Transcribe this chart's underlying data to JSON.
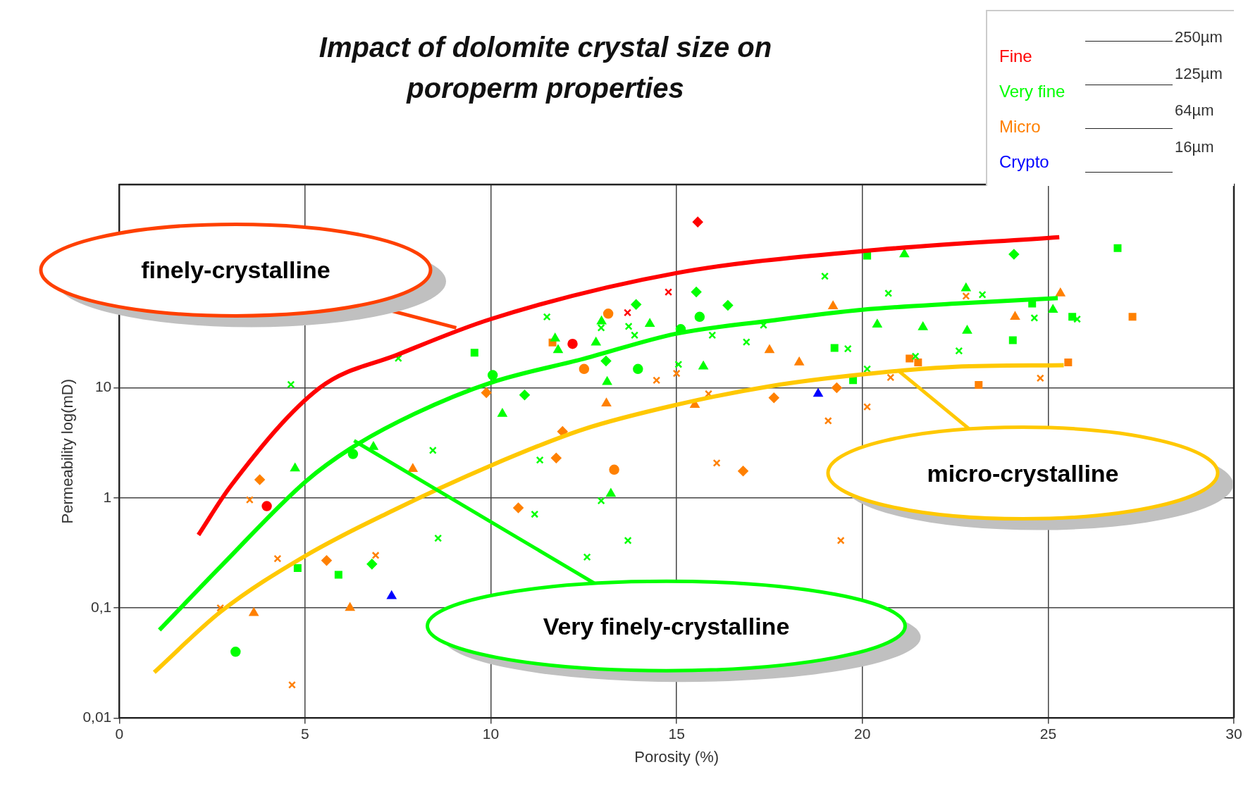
{
  "chart_data": {
    "type": "scatter",
    "title": "Impact of dolomite crystal size on poroperm properties",
    "xlabel": "Porosity (%)",
    "ylabel": "Permeability log(mD)",
    "xlim": [
      0,
      30
    ],
    "xticks": [
      0,
      5,
      10,
      15,
      20,
      25,
      30
    ],
    "ylim": [
      0.01,
      700
    ],
    "yticks": [
      {
        "value": 0.01,
        "label": "0,01"
      },
      {
        "value": 0.1,
        "label": "0,1"
      },
      {
        "value": 1,
        "label": "1"
      },
      {
        "value": 10,
        "label": "10"
      }
    ],
    "log": "y",
    "grid": true,
    "legend": "top right",
    "series": [
      {
        "name": "Fine",
        "color": "#ff0000",
        "marker": "circle",
        "x": [
          3.97,
          12.2
        ],
        "values": [
          0.84,
          25
        ]
      },
      {
        "color": "#ff0000",
        "marker": "cross",
        "x": [
          14.78,
          13.68
        ],
        "values": [
          74,
          48
        ]
      },
      {
        "color": "#ff0000",
        "marker": "diamond",
        "x": [
          15.57
        ],
        "values": [
          320
        ]
      },
      {
        "name": "Very fine",
        "color": "#00ff00",
        "marker": "circle",
        "x": [
          6.29,
          10.05,
          3.13,
          15.62,
          15.11,
          13.96
        ],
        "values": [
          2.5,
          13,
          0.04,
          44,
          34,
          14.8
        ]
      },
      {
        "color": "#00ff00",
        "marker": "cross",
        "x": [
          4.62,
          11.51,
          13.71,
          18.99,
          17.34,
          16.88,
          19.61,
          15.05,
          11.32,
          11.18,
          23.23
        ],
        "values": [
          10.7,
          44,
          36,
          103,
          37,
          26,
          22.6,
          16.3,
          2.2,
          0.71,
          70
        ]
      },
      {
        "color": "#00ff00",
        "marker": "square",
        "x": [
          9.56,
          4.8,
          5.9,
          20.13,
          19.25,
          19.75,
          26.87,
          24.57,
          25.65,
          24.05
        ],
        "values": [
          20.8,
          0.23,
          0.2,
          158,
          23,
          11.7,
          185,
          58,
          44,
          27
        ]
      },
      {
        "color": "#00ff00",
        "marker": "triangle",
        "x": [
          10.31,
          6.84,
          4.73,
          12.83,
          15.72,
          13.13,
          20.4,
          13.23,
          25.13,
          21.63,
          12.98,
          11.73,
          11.81,
          14.28,
          21.13,
          22.79,
          22.82
        ],
        "values": [
          5.8,
          2.9,
          1.85,
          25.7,
          15.6,
          11.3,
          37.5,
          1.09,
          51,
          35.5,
          40,
          28,
          22,
          38,
          163,
          80,
          33
        ]
      },
      {
        "color": "#00ff00",
        "marker": "diamond",
        "x": [
          6.8,
          15.53,
          13.91,
          16.38,
          13.1,
          10.91,
          24.08
        ],
        "values": [
          0.25,
          74,
          57,
          56,
          17.5,
          8.6,
          163
        ]
      },
      {
        "color": "#00ff00",
        "marker": "cross",
        "x": [
          7.51,
          8.44,
          8.58,
          12.97,
          13.87,
          15.96,
          20.7,
          20.13,
          12.97,
          13.69,
          12.59,
          24.63,
          25.78,
          22.6,
          21.43
        ],
        "values": [
          18.5,
          2.7,
          0.43,
          35,
          30,
          30,
          72,
          14.8,
          0.94,
          0.41,
          0.29,
          43,
          42,
          21.6,
          19.3
        ]
      },
      {
        "name": "Micro",
        "color": "#ff8000",
        "marker": "circle",
        "x": [
          13.16,
          12.51,
          13.32
        ],
        "values": [
          47,
          14.8,
          1.8
        ]
      },
      {
        "color": "#ff8000",
        "marker": "cross",
        "x": [
          16.08,
          22.79
        ],
        "values": [
          2.07,
          68
        ]
      },
      {
        "color": "#ff8000",
        "marker": "square",
        "x": [
          11.66,
          21.27,
          21.5,
          25.54,
          23.13,
          27.27
        ],
        "values": [
          25.7,
          18.4,
          17,
          17,
          10.6,
          44
        ]
      },
      {
        "color": "#ff8000",
        "marker": "triangle",
        "x": [
          7.9,
          6.21,
          3.62,
          17.5,
          18.3,
          19.21,
          13.11,
          15.49,
          25.33,
          24.11
        ],
        "values": [
          1.83,
          0.1,
          0.09,
          22,
          17,
          55,
          7.2,
          7.0,
          72,
          44
        ]
      },
      {
        "color": "#ff8000",
        "marker": "diamond",
        "x": [
          9.88,
          3.78,
          5.58,
          10.74,
          16.79,
          17.62,
          19.31,
          11.93,
          11.76
        ],
        "values": [
          9.0,
          1.46,
          0.27,
          0.81,
          1.75,
          8.1,
          10,
          4.0,
          2.3
        ]
      },
      {
        "color": "#ff8000",
        "marker": "cross",
        "x": [
          3.51,
          4.26,
          6.9,
          2.72,
          4.65,
          15.0,
          14.46,
          15.86,
          19.08,
          20.13,
          19.42,
          20.76,
          24.79
        ],
        "values": [
          0.96,
          0.28,
          0.3,
          0.1,
          0.02,
          13.5,
          11.7,
          8.8,
          5.0,
          6.7,
          0.41,
          12.4,
          12.2
        ]
      },
      {
        "name": "Crypto",
        "color": "#0000ff",
        "marker": "triangle",
        "x": [
          7.33,
          18.81
        ],
        "values": [
          0.128,
          8.8
        ]
      },
      {
        "type": "line",
        "color": "#ff0000",
        "marker": "none",
        "line_style": "solid",
        "x": [
          2.13,
          3,
          5.4,
          7.5,
          10,
          15,
          20,
          25.3
        ],
        "values": [
          0.46,
          1.28,
          10,
          20,
          42,
          110,
          174,
          233
        ]
      },
      {
        "type": "line",
        "color": "#00ff00",
        "marker": "none",
        "line_style": "solid",
        "x": [
          1.08,
          2.74,
          5.03,
          6.22,
          7.95,
          10,
          12.5,
          15,
          17.5,
          20,
          22.5,
          25.26
        ],
        "values": [
          0.063,
          0.24,
          1.42,
          2.8,
          5.8,
          11.1,
          18.3,
          31,
          40.5,
          51,
          58,
          65
        ]
      },
      {
        "type": "line",
        "color": "#ffc800",
        "marker": "none",
        "line_style": "solid",
        "x": [
          0.94,
          2.74,
          5.03,
          7.27,
          9.98,
          12.5,
          15,
          17.5,
          20,
          22.5,
          25.42
        ],
        "values": [
          0.026,
          0.093,
          0.3,
          0.74,
          1.95,
          4.2,
          7.0,
          10.3,
          13.2,
          15.5,
          16
        ]
      }
    ],
    "annotations": [
      "250µm",
      "125µm",
      "64µm",
      "16µm",
      {
        "text": "finely-crystalline",
        "x": 9.07,
        "y": 35
      },
      {
        "text": "Very finely-crystalline",
        "x": 6.32,
        "y": 3.3
      },
      {
        "text": "micro-crystalline",
        "x": 21.0,
        "y": 14
      }
    ]
  }
}
